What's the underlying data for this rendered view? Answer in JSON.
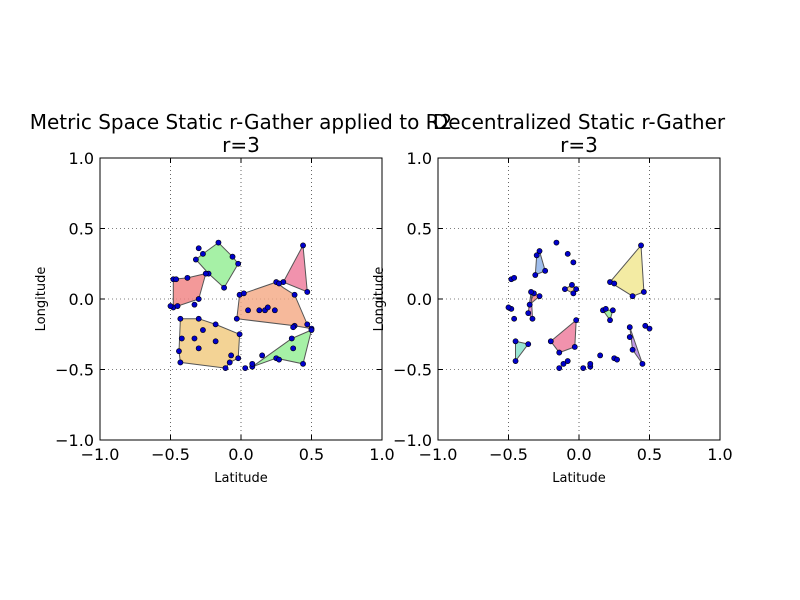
{
  "chart_data": [
    {
      "type": "scatter",
      "title": "Metric Space Static r-Gather applied to R2",
      "subtitle": "r=3",
      "xlabel": "Latitude",
      "ylabel": "Longitude",
      "xlim": [
        -1.0,
        1.0
      ],
      "ylim": [
        -1.0,
        1.0
      ],
      "xticks": [
        "−1.0",
        "−0.5",
        "0.0",
        "0.5",
        "1.0"
      ],
      "yticks": [
        "−1.0",
        "−0.5",
        "0.0",
        "0.5",
        "1.0"
      ],
      "grid": "dotted",
      "point_color": "#00008b",
      "polygons": [
        {
          "color": "#90ee90",
          "points": [
            [
              -0.27,
              0.32
            ],
            [
              -0.16,
              0.4
            ],
            [
              -0.06,
              0.3
            ],
            [
              -0.02,
              0.25
            ],
            [
              -0.12,
              0.08
            ],
            [
              -0.23,
              0.18
            ],
            [
              -0.32,
              0.28
            ]
          ]
        },
        {
          "color": "#ee7799",
          "points": [
            [
              0.3,
              0.12
            ],
            [
              0.44,
              0.38
            ],
            [
              0.47,
              0.05
            ]
          ]
        },
        {
          "color": "#f08080",
          "points": [
            [
              -0.48,
              0.14
            ],
            [
              -0.38,
              0.15
            ],
            [
              -0.25,
              0.18
            ],
            [
              -0.3,
              0.0
            ],
            [
              -0.48,
              -0.06
            ]
          ]
        },
        {
          "color": "#f4a882",
          "points": [
            [
              -0.01,
              0.03
            ],
            [
              0.25,
              0.12
            ],
            [
              0.3,
              0.08
            ],
            [
              0.38,
              0.03
            ],
            [
              0.47,
              -0.18
            ],
            [
              0.5,
              -0.21
            ],
            [
              0.38,
              -0.19
            ],
            [
              -0.03,
              -0.14
            ]
          ]
        },
        {
          "color": "#f0c87a",
          "points": [
            [
              -0.43,
              -0.14
            ],
            [
              -0.3,
              -0.14
            ],
            [
              -0.18,
              -0.18
            ],
            [
              -0.01,
              -0.25
            ],
            [
              -0.02,
              -0.42
            ],
            [
              -0.08,
              -0.45
            ],
            [
              -0.11,
              -0.49
            ],
            [
              -0.43,
              -0.45
            ],
            [
              -0.44,
              -0.37
            ]
          ]
        },
        {
          "color": "#90ee90",
          "points": [
            [
              0.08,
              -0.48
            ],
            [
              0.25,
              -0.42
            ],
            [
              0.44,
              -0.46
            ],
            [
              0.5,
              -0.22
            ],
            [
              0.36,
              -0.28
            ]
          ]
        }
      ],
      "points": [
        [
          -0.16,
          0.4
        ],
        [
          -0.27,
          0.32
        ],
        [
          -0.32,
          0.28
        ],
        [
          -0.23,
          0.18
        ],
        [
          -0.12,
          0.08
        ],
        [
          -0.06,
          0.3
        ],
        [
          -0.02,
          0.25
        ],
        [
          -0.3,
          0.36
        ],
        [
          -0.25,
          0.18
        ],
        [
          -0.48,
          0.14
        ],
        [
          -0.46,
          0.14
        ],
        [
          -0.38,
          0.15
        ],
        [
          -0.3,
          0.0
        ],
        [
          -0.48,
          -0.06
        ],
        [
          -0.5,
          -0.05
        ],
        [
          -0.33,
          -0.04
        ],
        [
          -0.45,
          -0.05
        ],
        [
          0.44,
          0.38
        ],
        [
          0.3,
          0.12
        ],
        [
          0.47,
          0.05
        ],
        [
          -0.01,
          0.03
        ],
        [
          0.02,
          0.04
        ],
        [
          0.25,
          0.12
        ],
        [
          0.27,
          0.11
        ],
        [
          0.38,
          0.03
        ],
        [
          0.47,
          -0.18
        ],
        [
          0.5,
          -0.21
        ],
        [
          0.38,
          -0.19
        ],
        [
          -0.03,
          -0.14
        ],
        [
          0.17,
          -0.08
        ],
        [
          0.19,
          -0.06
        ],
        [
          0.13,
          -0.08
        ],
        [
          0.24,
          -0.08
        ],
        [
          0.05,
          -0.08
        ],
        [
          -0.43,
          -0.14
        ],
        [
          -0.3,
          -0.14
        ],
        [
          -0.18,
          -0.18
        ],
        [
          -0.01,
          -0.25
        ],
        [
          -0.02,
          -0.42
        ],
        [
          -0.08,
          -0.45
        ],
        [
          -0.11,
          -0.49
        ],
        [
          -0.43,
          -0.45
        ],
        [
          -0.44,
          -0.37
        ],
        [
          -0.42,
          -0.28
        ],
        [
          -0.27,
          -0.22
        ],
        [
          -0.18,
          -0.3
        ],
        [
          -0.33,
          -0.28
        ],
        [
          -0.07,
          -0.4
        ],
        [
          -0.3,
          -0.35
        ],
        [
          0.08,
          -0.48
        ],
        [
          0.08,
          -0.46
        ],
        [
          0.25,
          -0.42
        ],
        [
          0.44,
          -0.46
        ],
        [
          0.5,
          -0.22
        ],
        [
          0.36,
          -0.28
        ],
        [
          0.37,
          -0.35
        ],
        [
          0.27,
          -0.43
        ],
        [
          0.15,
          -0.4
        ],
        [
          0.37,
          -0.2
        ],
        [
          0.03,
          -0.49
        ]
      ]
    },
    {
      "type": "scatter",
      "title": "Decentralized Static r-Gather",
      "subtitle": "r=3",
      "xlabel": "Latitude",
      "ylabel": "Longitude",
      "xlim": [
        -1.0,
        1.0
      ],
      "ylim": [
        -1.0,
        1.0
      ],
      "xticks": [
        "−1.0",
        "−0.5",
        "0.0",
        "0.5",
        "1.0"
      ],
      "yticks": [
        "−1.0",
        "−0.5",
        "0.0",
        "0.5",
        "1.0"
      ],
      "grid": "dotted",
      "point_color": "#00008b",
      "polygons": [
        {
          "color": "#87aee8",
          "points": [
            [
              -0.28,
              0.34
            ],
            [
              -0.24,
              0.2
            ],
            [
              -0.31,
              0.17
            ],
            [
              -0.3,
              0.31
            ]
          ]
        },
        {
          "color": "#f0e68c",
          "points": [
            [
              0.22,
              0.12
            ],
            [
              0.44,
              0.38
            ],
            [
              0.46,
              0.05
            ],
            [
              0.38,
              0.02
            ]
          ]
        },
        {
          "color": "#f0c87a",
          "points": [
            [
              -0.1,
              0.07
            ],
            [
              -0.05,
              0.1
            ],
            [
              -0.02,
              0.07
            ],
            [
              -0.04,
              0.04
            ]
          ]
        },
        {
          "color": "#f08080",
          "points": [
            [
              -0.35,
              -0.04
            ],
            [
              -0.32,
              0.04
            ],
            [
              -0.28,
              0.02
            ]
          ]
        },
        {
          "color": "#90ee90",
          "points": [
            [
              0.17,
              -0.08
            ],
            [
              0.24,
              -0.08
            ],
            [
              0.22,
              -0.15
            ]
          ]
        },
        {
          "color": "#dd77cc",
          "points": [
            [
              -0.34,
              0.05
            ],
            [
              -0.36,
              -0.1
            ],
            [
              -0.33,
              -0.14
            ]
          ]
        },
        {
          "color": "#ee7799",
          "points": [
            [
              -0.2,
              -0.3
            ],
            [
              -0.02,
              -0.15
            ],
            [
              -0.03,
              -0.34
            ],
            [
              -0.14,
              -0.38
            ]
          ]
        },
        {
          "color": "#7fe0c8",
          "points": [
            [
              -0.45,
              -0.3
            ],
            [
              -0.45,
              -0.44
            ],
            [
              -0.36,
              -0.32
            ]
          ]
        },
        {
          "color": "#b07fe0",
          "points": [
            [
              0.36,
              -0.2
            ],
            [
              0.38,
              -0.36
            ],
            [
              0.45,
              -0.46
            ]
          ]
        }
      ],
      "points": [
        [
          -0.28,
          0.34
        ],
        [
          -0.24,
          0.2
        ],
        [
          -0.31,
          0.17
        ],
        [
          -0.3,
          0.31
        ],
        [
          -0.16,
          0.4
        ],
        [
          -0.04,
          0.26
        ],
        [
          -0.08,
          0.32
        ],
        [
          -0.48,
          0.14
        ],
        [
          -0.46,
          0.15
        ],
        [
          0.22,
          0.12
        ],
        [
          0.44,
          0.38
        ],
        [
          0.46,
          0.05
        ],
        [
          0.38,
          0.02
        ],
        [
          0.25,
          0.11
        ],
        [
          -0.1,
          0.07
        ],
        [
          -0.05,
          0.1
        ],
        [
          -0.02,
          0.07
        ],
        [
          -0.04,
          0.04
        ],
        [
          -0.35,
          -0.04
        ],
        [
          -0.32,
          0.04
        ],
        [
          -0.28,
          0.02
        ],
        [
          -0.34,
          0.05
        ],
        [
          -0.36,
          -0.1
        ],
        [
          -0.33,
          -0.14
        ],
        [
          -0.48,
          -0.07
        ],
        [
          -0.46,
          -0.14
        ],
        [
          -0.5,
          -0.06
        ],
        [
          0.17,
          -0.08
        ],
        [
          0.24,
          -0.08
        ],
        [
          0.22,
          -0.15
        ],
        [
          0.19,
          -0.07
        ],
        [
          -0.2,
          -0.3
        ],
        [
          -0.02,
          -0.15
        ],
        [
          -0.03,
          -0.34
        ],
        [
          -0.14,
          -0.38
        ],
        [
          -0.14,
          -0.49
        ],
        [
          -0.11,
          -0.46
        ],
        [
          -0.08,
          -0.44
        ],
        [
          -0.45,
          -0.3
        ],
        [
          -0.45,
          -0.44
        ],
        [
          -0.36,
          -0.32
        ],
        [
          0.36,
          -0.2
        ],
        [
          0.38,
          -0.36
        ],
        [
          0.45,
          -0.46
        ],
        [
          0.36,
          -0.27
        ],
        [
          0.47,
          -0.19
        ],
        [
          0.5,
          -0.21
        ],
        [
          0.15,
          -0.4
        ],
        [
          0.25,
          -0.42
        ],
        [
          0.27,
          -0.43
        ],
        [
          0.03,
          -0.49
        ],
        [
          0.08,
          -0.48
        ],
        [
          0.08,
          -0.46
        ]
      ]
    }
  ]
}
